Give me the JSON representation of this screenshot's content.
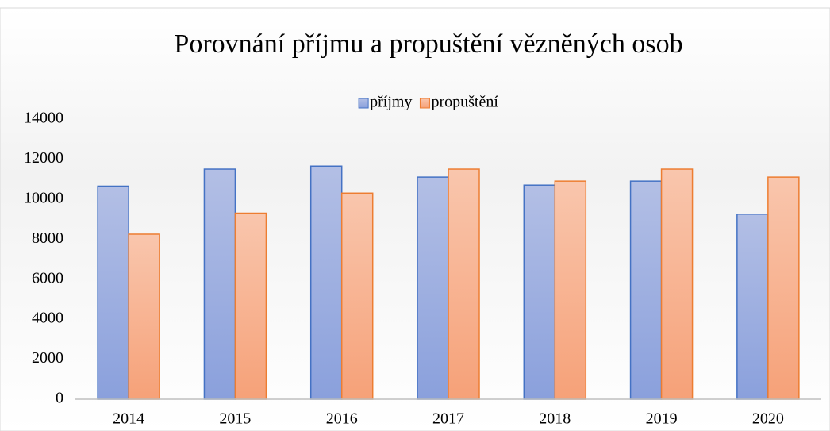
{
  "chart_data": {
    "type": "bar",
    "title": "Porovnání příjmu a propuštění vězněných osob",
    "categories": [
      "2014",
      "2015",
      "2016",
      "2017",
      "2018",
      "2019",
      "2020"
    ],
    "series": [
      {
        "name": "příjmy",
        "color": "#4472c4",
        "values": [
          10650,
          11500,
          11650,
          11100,
          10700,
          10900,
          9250
        ]
      },
      {
        "name": "propuštění",
        "color": "#ed7d31",
        "values": [
          8250,
          9300,
          10300,
          11500,
          10900,
          11500,
          11100
        ]
      }
    ],
    "ylim": [
      0,
      14000
    ],
    "yticks": [
      0,
      2000,
      4000,
      6000,
      8000,
      10000,
      12000,
      14000
    ],
    "legend": "top"
  }
}
